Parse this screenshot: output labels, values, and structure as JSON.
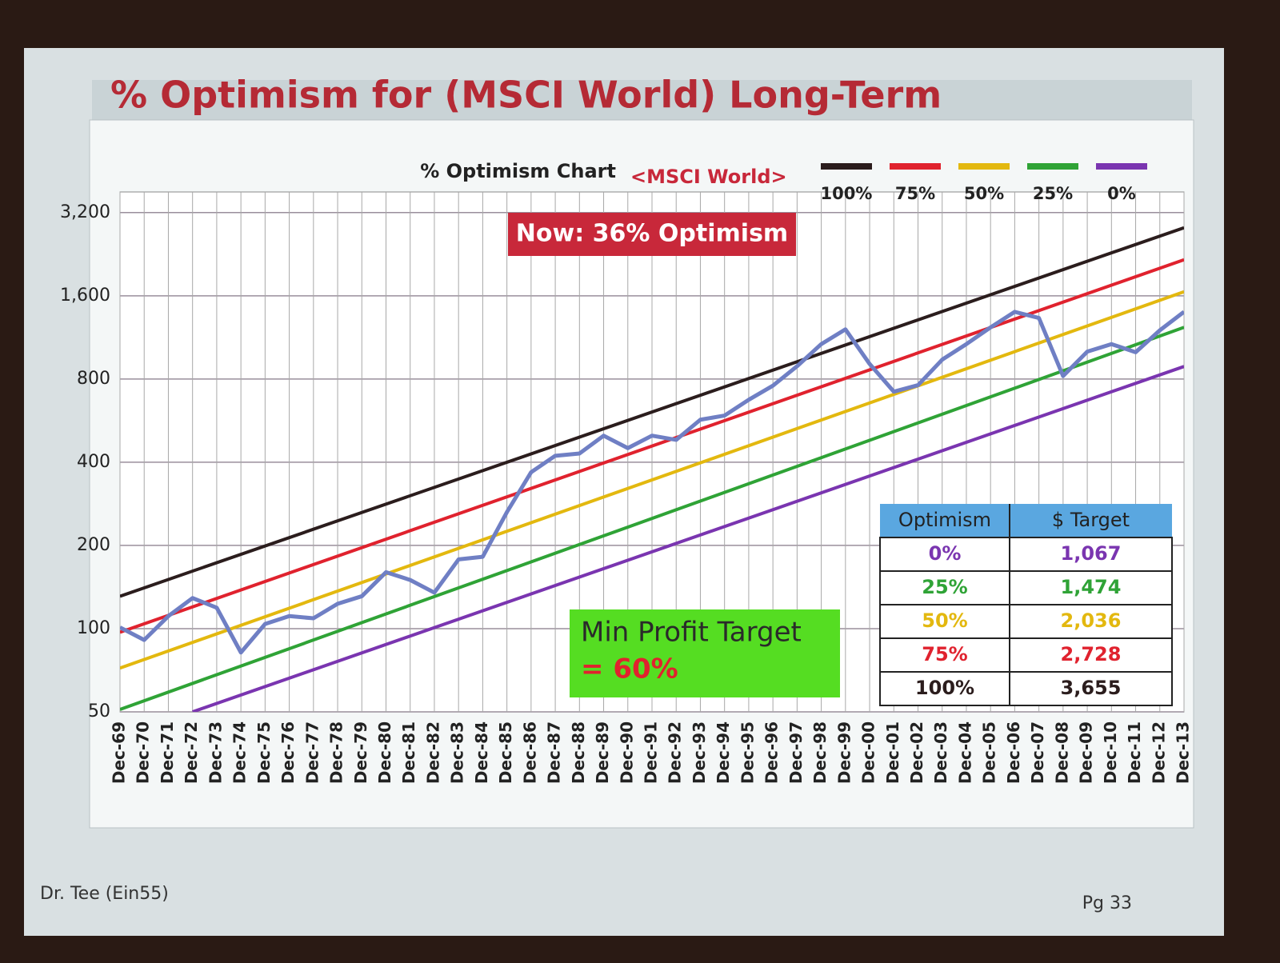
{
  "chart_data": {
    "type": "line",
    "title": "% Optimism for (MSCI World) Long-Term",
    "legend_title": "% Optimism Chart",
    "legend_subtitle": "<MSCI World>",
    "categories": [
      "Dec-69",
      "Dec-70",
      "Dec-71",
      "Dec-72",
      "Dec-73",
      "Dec-74",
      "Dec-75",
      "Dec-76",
      "Dec-77",
      "Dec-78",
      "Dec-79",
      "Dec-80",
      "Dec-81",
      "Dec-82",
      "Dec-83",
      "Dec-84",
      "Dec-85",
      "Dec-86",
      "Dec-87",
      "Dec-88",
      "Dec-89",
      "Dec-90",
      "Dec-91",
      "Dec-92",
      "Dec-93",
      "Dec-94",
      "Dec-95",
      "Dec-96",
      "Dec-97",
      "Dec-98",
      "Dec-99",
      "Dec-00",
      "Dec-01",
      "Dec-02",
      "Dec-03",
      "Dec-04",
      "Dec-05",
      "Dec-06",
      "Dec-07",
      "Dec-08",
      "Dec-09",
      "Dec-10",
      "Dec-11",
      "Dec-12",
      "Dec-13"
    ],
    "values": [
      101,
      91,
      111,
      129,
      119,
      82,
      104,
      111,
      109,
      123,
      131,
      160,
      150,
      135,
      178,
      182,
      264,
      368,
      422,
      430,
      499,
      450,
      499,
      482,
      570,
      590,
      673,
      757,
      890,
      1070,
      1210,
      907,
      720,
      760,
      940,
      1070,
      1230,
      1400,
      1330,
      820,
      1005,
      1070,
      1000,
      1200,
      1400
    ],
    "color": "#6f7fc4",
    "series": [
      {
        "name": "100%",
        "color": "#2b1d1d",
        "x": [
          "Dec-69",
          "Dec-13"
        ],
        "values": [
          131,
          2820
        ]
      },
      {
        "name": "75%",
        "color": "#e0222e",
        "x": [
          "Dec-69",
          "Dec-13"
        ],
        "values": [
          97,
          2160
        ]
      },
      {
        "name": "50%",
        "color": "#e3b80f",
        "x": [
          "Dec-69",
          "Dec-13"
        ],
        "values": [
          72,
          1655
        ]
      },
      {
        "name": "25%",
        "color": "#2fa336",
        "x": [
          "Dec-69",
          "Dec-13"
        ],
        "values": [
          51,
          1230
        ]
      },
      {
        "name": "0%",
        "color": "#7a35b0",
        "x": [
          "Dec-72",
          "Dec-13"
        ],
        "values": [
          50,
          888
        ]
      }
    ],
    "log_scale": true,
    "grid": true,
    "ylim": [
      50,
      3800
    ],
    "yticks": [
      50,
      100,
      200,
      400,
      800,
      {
        "value": 1600,
        "label": "1,600"
      },
      {
        "value": 3200,
        "label": "3,200"
      }
    ],
    "annotations": {
      "now": "Now: 36% Optimism",
      "target_line1": "Min Profit Target",
      "target_line2": "= 60%"
    },
    "target_table": {
      "columns": [
        "Optimism",
        "$ Target"
      ],
      "rows": [
        [
          "0%",
          "1,067"
        ],
        [
          "25%",
          "1,474"
        ],
        [
          "50%",
          "2,036"
        ],
        [
          "75%",
          "2,728"
        ],
        [
          "100%",
          "3,655"
        ]
      ]
    }
  },
  "footer": {
    "left": "Dr. Tee (Ein55)",
    "right": "Pg 33"
  }
}
